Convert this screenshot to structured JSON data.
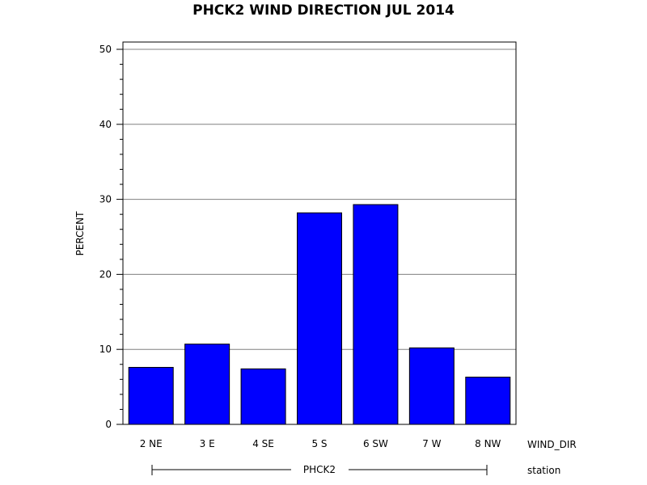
{
  "chart_data": {
    "type": "bar",
    "title": "PHCK2 WIND DIRECTION JUL 2014",
    "ylabel": "PERCENT",
    "xlabel": "WIND_DIR",
    "group_label": "station",
    "group_name": "PHCK2",
    "categories": [
      "2 NE",
      "3 E",
      "4 SE",
      "5 S",
      "6 SW",
      "7 W",
      "8 NW"
    ],
    "values": [
      7.6,
      10.7,
      7.4,
      28.2,
      29.3,
      10.2,
      6.3
    ],
    "ylim": [
      0,
      50
    ],
    "y_ticks": [
      0,
      10,
      20,
      30,
      40,
      50
    ],
    "grid": true,
    "bar_color": "#0000ff"
  }
}
